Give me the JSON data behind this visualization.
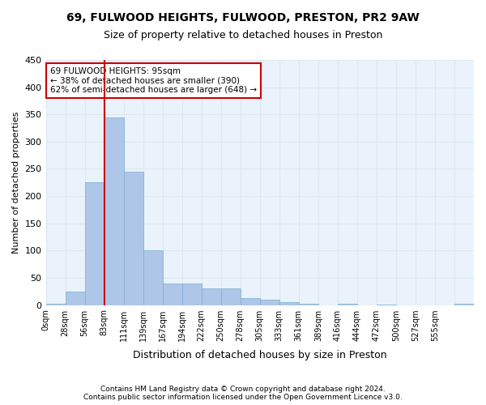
{
  "title": "69, FULWOOD HEIGHTS, FULWOOD, PRESTON, PR2 9AW",
  "subtitle": "Size of property relative to detached houses in Preston",
  "xlabel": "Distribution of detached houses by size in Preston",
  "ylabel": "Number of detached properties",
  "bar_values": [
    2,
    25,
    225,
    345,
    245,
    100,
    40,
    40,
    30,
    30,
    12,
    10,
    5,
    2,
    0,
    2,
    0,
    1,
    0,
    0,
    0,
    2
  ],
  "bar_labels": [
    "0sqm",
    "28sqm",
    "56sqm",
    "83sqm",
    "111sqm",
    "139sqm",
    "167sqm",
    "194sqm",
    "222sqm",
    "250sqm",
    "278sqm",
    "305sqm",
    "333sqm",
    "361sqm",
    "389sqm",
    "416sqm",
    "444sqm",
    "472sqm",
    "500sqm",
    "527sqm",
    "555sqm",
    ""
  ],
  "bar_color": "#aec6e8",
  "bar_edge_color": "#7aafd4",
  "grid_color": "#dde8f0",
  "background_color": "#eaf2fb",
  "annotation_box_color": "#ffffff",
  "annotation_box_edge": "#cc0000",
  "annotation_line_color": "#cc0000",
  "property_line_x": 3.0,
  "property_sqm": 95,
  "pct_smaller": 38,
  "n_smaller": 390,
  "pct_larger": 62,
  "n_larger": 648,
  "ylim": [
    0,
    450
  ],
  "yticks": [
    0,
    50,
    100,
    150,
    200,
    250,
    300,
    350,
    400,
    450
  ],
  "footer_line1": "Contains HM Land Registry data © Crown copyright and database right 2024.",
  "footer_line2": "Contains public sector information licensed under the Open Government Licence v3.0."
}
